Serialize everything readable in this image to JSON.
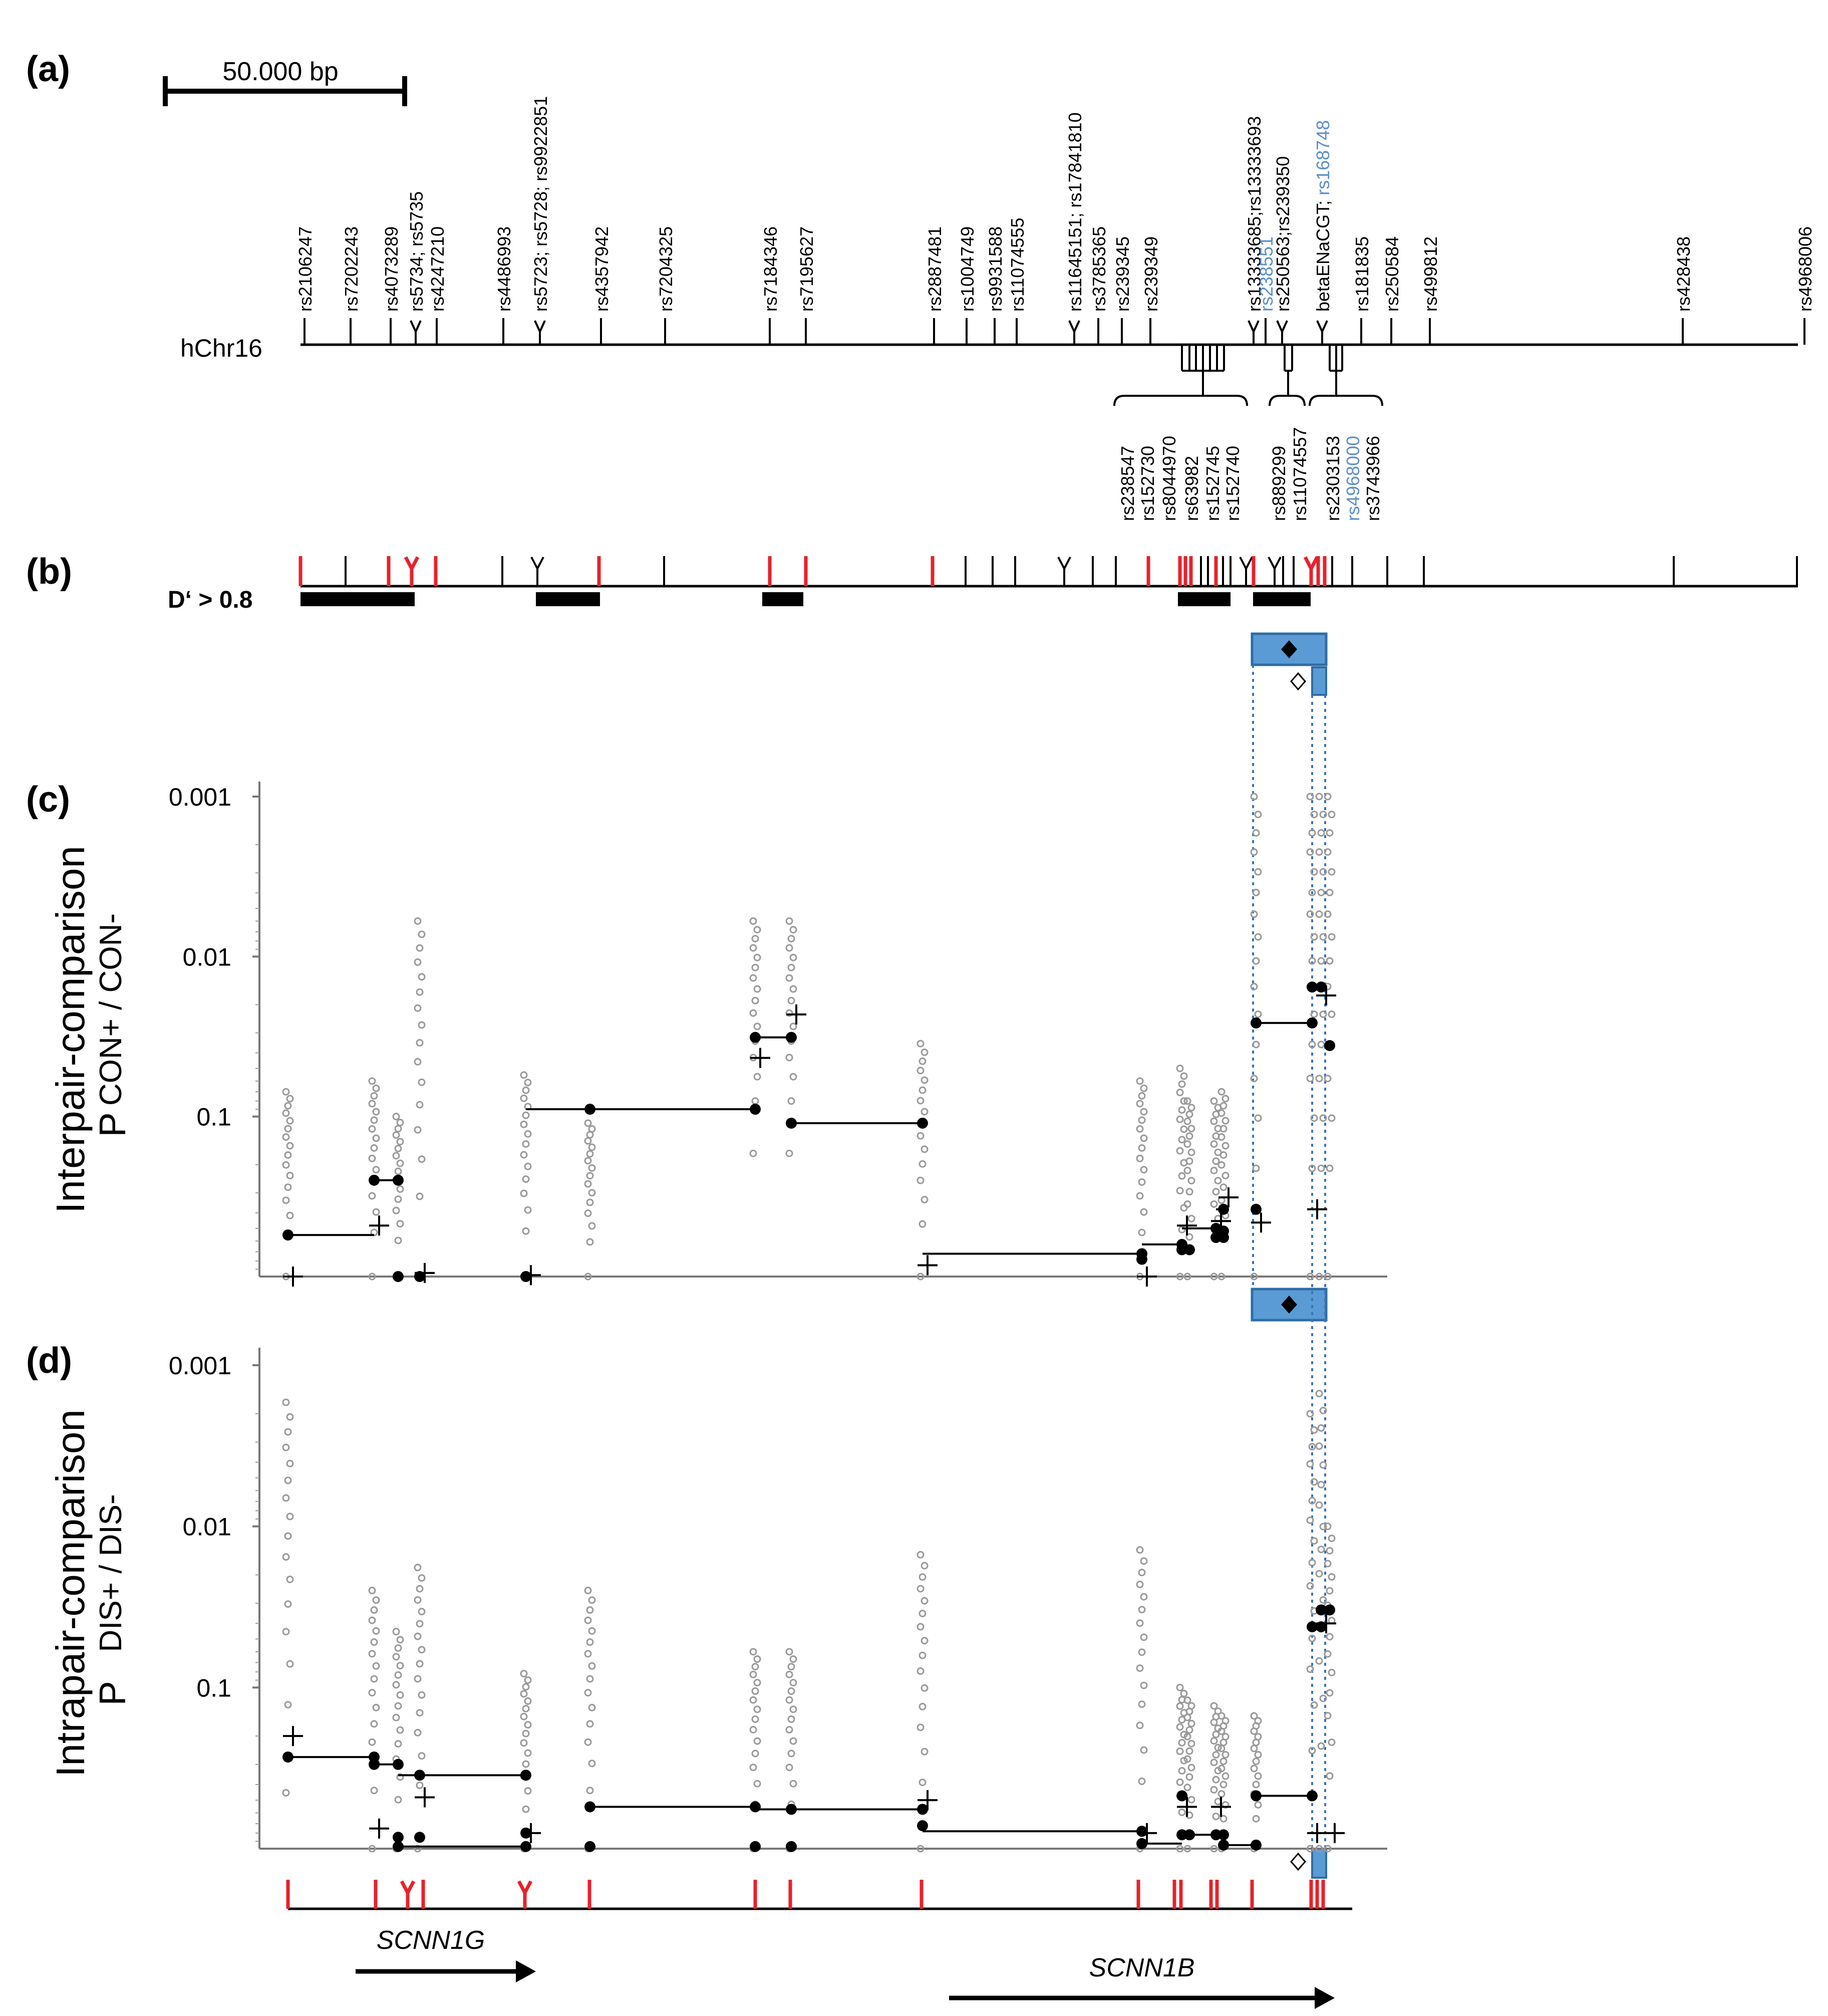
{
  "panels": {
    "a": "(a)",
    "b": "(b)",
    "c": "(c)",
    "d": "(d)"
  },
  "scale_bar": {
    "label": "50.000 bp"
  },
  "chromosome_label": "hChr16",
  "ld_label": "D‘ > 0.8",
  "colors": {
    "marker_red": "#e8212a",
    "highlight_blue": "#5b9bd5",
    "highlight_border": "#2e6da4",
    "guide_dotted": "#3b72b8",
    "individual_points": "#9a9a9a",
    "label_blue": "#5b8ec9"
  },
  "snp_labels_top": [
    {
      "text": "rs2106247",
      "color": "#000000"
    },
    {
      "text": "rs7202243",
      "color": "#000000"
    },
    {
      "text": "rs4073289",
      "color": "#000000"
    },
    {
      "text": "rs5734; rs5735",
      "color": "#000000"
    },
    {
      "text": "rs4247210",
      "color": "#000000"
    },
    {
      "text": "rs4486993",
      "color": "#000000"
    },
    {
      "text": "rs5723; rs5728; rs9922851",
      "color": "#000000"
    },
    {
      "text": "rs4357942",
      "color": "#000000"
    },
    {
      "text": "rs7204325",
      "color": "#000000"
    },
    {
      "text": "rs7184346",
      "color": "#000000"
    },
    {
      "text": "rs7195627",
      "color": "#000000"
    },
    {
      "text": "rs2887481",
      "color": "#000000"
    },
    {
      "text": "rs1004749",
      "color": "#000000"
    },
    {
      "text": "rs9931588",
      "color": "#000000"
    },
    {
      "text": "rs11074555",
      "color": "#000000"
    },
    {
      "text": "rs11645151; rs17841810",
      "color": "#000000"
    },
    {
      "text": "rs3785365",
      "color": "#000000"
    },
    {
      "text": "rs239345",
      "color": "#000000"
    },
    {
      "text": "rs239349",
      "color": "#000000"
    },
    {
      "text": "rs13333685;rs13333693",
      "color": "#000000"
    },
    {
      "text": "rs238551",
      "color": "#5b8ec9"
    },
    {
      "text": "rs250563;rs239350",
      "color": "#000000"
    },
    {
      "text": "betaENaCGT; ",
      "color": "#000000",
      "extra": "rs168748",
      "extra_color": "#5b8ec9"
    },
    {
      "text": "rs181835",
      "color": "#000000"
    },
    {
      "text": "rs250584",
      "color": "#000000"
    },
    {
      "text": "rs499812",
      "color": "#000000"
    },
    {
      "text": "rs428438",
      "color": "#000000"
    },
    {
      "text": "rs4968006",
      "color": "#000000"
    }
  ],
  "snp_labels_bottom": [
    {
      "text": "rs238547",
      "color": "#000000"
    },
    {
      "text": "rs152730",
      "color": "#000000"
    },
    {
      "text": "rs8044970",
      "color": "#000000"
    },
    {
      "text": "rs63982",
      "color": "#000000"
    },
    {
      "text": "rs152745",
      "color": "#000000"
    },
    {
      "text": "rs152740",
      "color": "#000000"
    },
    {
      "text": "rs889299",
      "color": "#000000"
    },
    {
      "text": "rs11074557",
      "color": "#000000"
    },
    {
      "text": "rs2303153",
      "color": "#000000"
    },
    {
      "text": "rs4968000",
      "color": "#5b8ec9"
    },
    {
      "text": "rs3743966",
      "color": "#000000"
    }
  ],
  "genes": [
    {
      "name": "SCNN1G",
      "direction": "right"
    },
    {
      "name": "SCNN1B",
      "direction": "right"
    }
  ],
  "chart_data": [
    {
      "type": "scatter",
      "panel": "c",
      "title": "",
      "ylabel": "Interpair-comparison",
      "ylabel_sub_p": "P",
      "ylabel_sub_text": "CON+ / CON-",
      "yscale": "log-inverted",
      "ylim": [
        1,
        0.001
      ],
      "yticks": [
        {
          "value": 0.001,
          "label": "0.001"
        },
        {
          "value": 0.01,
          "label": "0.01"
        },
        {
          "value": 0.1,
          "label": "0.1"
        }
      ],
      "markers": [
        {
          "x": 0.8,
          "medians": [
            0.55
          ],
          "cross": 1.0,
          "spread": [
            0.07,
            1.0
          ]
        },
        {
          "x": 7.1,
          "medians": [
            0.25
          ],
          "cross": 0.48,
          "spread": [
            0.06,
            1.0
          ]
        },
        {
          "x": 8.6,
          "medians": [
            0.25,
            1.0
          ],
          "cross": null,
          "spread": [
            0.1,
            1.0
          ]
        },
        {
          "x": 10.2,
          "medians": [
            1.0
          ],
          "cross": 0.95,
          "spread": [
            0.006,
            1.0
          ]
        },
        {
          "x": 17.3,
          "medians": [
            1.0
          ],
          "cross": 0.98,
          "spread": [
            0.055,
            1.0
          ]
        },
        {
          "x": 21.5,
          "medians": [
            0.09
          ],
          "cross": null,
          "spread": [
            0.11,
            1.0
          ]
        },
        {
          "x": 31.2,
          "medians": [
            0.09,
            0.032
          ],
          "cross": 0.043,
          "spread": [
            0.006,
            0.17
          ]
        },
        {
          "x": 33.5,
          "medians": [
            0.032,
            0.11
          ],
          "cross": 0.023,
          "spread": [
            0.006,
            0.17
          ]
        },
        {
          "x": 41.5,
          "medians": [
            0.11
          ],
          "cross": 0.85,
          "spread": [
            0.035,
            1.0
          ]
        },
        {
          "x": 56.5,
          "medians": [
            0.72,
            0.78
          ],
          "cross": 1.0,
          "spread": [
            0.06,
            1.0
          ]
        },
        {
          "x": 59.2,
          "medians": [
            0.63,
            0.68
          ],
          "cross": 0.48,
          "spread": [
            0.05,
            1.0
          ]
        },
        {
          "x": 60.2,
          "medians": [
            0.68
          ],
          "cross": null,
          "spread": [
            0.08,
            1.0
          ]
        },
        {
          "x": 61.4,
          "medians": [
            0.5,
            0.57
          ],
          "cross": 0.45,
          "spread": [
            0.08,
            1.0
          ]
        },
        {
          "x": 63.0,
          "medians": [
            0.57,
            0.52,
            0.38
          ],
          "cross": 0.32,
          "spread": [
            0.07,
            1.0
          ]
        },
        {
          "x": 65.8,
          "medians": [
            0.38,
            0.026
          ],
          "cross": 0.46,
          "spread": [
            0.001,
            1.0
          ]
        },
        {
          "x": 69.8,
          "medians": [
            0.026,
            0.0155
          ],
          "cross": 0.38,
          "spread": [
            0.001,
            1.0
          ]
        },
        {
          "x": 70.5,
          "medians": [
            0.0155
          ],
          "cross": 0.0175,
          "spread": [
            0.001,
            1.0
          ]
        },
        {
          "x": 71.3,
          "medians": [
            0.036
          ],
          "cross": null,
          "spread": [
            0.001,
            1.0
          ]
        }
      ],
      "segments": [
        {
          "x0": 0.8,
          "x1": 7.1,
          "y": 0.55
        },
        {
          "x0": 7.1,
          "x1": 8.6,
          "y": 0.25
        },
        {
          "x0": 17.3,
          "x1": 21.5,
          "y": 0.09
        },
        {
          "x0": 21.5,
          "x1": 31.2,
          "y": 0.09
        },
        {
          "x0": 31.2,
          "x1": 33.5,
          "y": 0.032
        },
        {
          "x0": 33.5,
          "x1": 41.5,
          "y": 0.11
        },
        {
          "x0": 41.5,
          "x1": 56.5,
          "y": 0.72
        },
        {
          "x0": 56.5,
          "x1": 59.2,
          "y": 0.63
        },
        {
          "x0": 59.2,
          "x1": 61.4,
          "y": 0.5
        },
        {
          "x0": 61.4,
          "x1": 63.0,
          "y": 0.38
        },
        {
          "x0": 65.8,
          "x1": 69.8,
          "y": 0.026
        }
      ]
    },
    {
      "type": "scatter",
      "panel": "d",
      "title": "",
      "ylabel": "Intrapair-comparison",
      "ylabel_sub_p": "P",
      "ylabel_sub_text": "DIS+ / DIS-",
      "yscale": "log-inverted",
      "ylim": [
        1,
        0.001
      ],
      "yticks": [
        {
          "value": 0.001,
          "label": "0.001"
        },
        {
          "value": 0.01,
          "label": "0.01"
        },
        {
          "value": 0.1,
          "label": "0.1"
        }
      ],
      "markers": [
        {
          "x": 0.8,
          "medians": [
            0.27
          ],
          "cross": 0.2,
          "spread": [
            0.0017,
            0.45
          ]
        },
        {
          "x": 7.1,
          "medians": [
            0.27,
            0.3
          ],
          "cross": 0.75,
          "spread": [
            0.025,
            1.0
          ]
        },
        {
          "x": 8.6,
          "medians": [
            0.3,
            0.85,
            0.97
          ],
          "cross": null,
          "spread": [
            0.045,
            1.0
          ]
        },
        {
          "x": 10.2,
          "medians": [
            0.85,
            0.35
          ],
          "cross": 0.48,
          "spread": [
            0.018,
            1.0
          ]
        },
        {
          "x": 17.3,
          "medians": [
            0.35,
            0.8,
            0.97
          ],
          "cross": 0.8,
          "spread": [
            0.082,
            1.0
          ]
        },
        {
          "x": 21.5,
          "medians": [
            0.97,
            0.55
          ],
          "cross": null,
          "spread": [
            0.025,
            1.0
          ]
        },
        {
          "x": 31.2,
          "medians": [
            0.55,
            0.97
          ],
          "cross": null,
          "spread": [
            0.06,
            1.0
          ]
        },
        {
          "x": 33.5,
          "medians": [
            0.57,
            0.97
          ],
          "cross": null,
          "spread": [
            0.06,
            1.0
          ]
        },
        {
          "x": 41.5,
          "medians": [
            0.57,
            0.72
          ],
          "cross": 0.5,
          "spread": [
            0.015,
            1.0
          ]
        },
        {
          "x": 56.5,
          "medians": [
            0.78,
            0.93
          ],
          "cross": 0.8,
          "spread": [
            0.014,
            1.0
          ]
        },
        {
          "x": 59.2,
          "medians": [
            0.47,
            0.82
          ],
          "cross": 0.55,
          "spread": [
            0.1,
            1.0
          ]
        },
        {
          "x": 60.2,
          "medians": [
            0.82
          ],
          "cross": null,
          "spread": [
            0.12,
            1.0
          ]
        },
        {
          "x": 61.4,
          "medians": [
            0.82
          ],
          "cross": 0.55,
          "spread": [
            0.13,
            1.0
          ]
        },
        {
          "x": 63.0,
          "medians": [
            0.82,
            0.95
          ],
          "cross": null,
          "spread": [
            0.15,
            1.0
          ]
        },
        {
          "x": 65.8,
          "medians": [
            0.47,
            0.95
          ],
          "cross": null,
          "spread": [
            0.15,
            1.0
          ]
        },
        {
          "x": 69.8,
          "medians": [
            0.47,
            0.042
          ],
          "cross": 0.8,
          "spread": [
            0.002,
            1.0
          ]
        },
        {
          "x": 70.5,
          "medians": [
            0.042,
            0.033
          ],
          "cross": 0.04,
          "spread": [
            0.0015,
            1.0
          ]
        },
        {
          "x": 71.3,
          "medians": [
            0.033
          ],
          "cross": 0.8,
          "spread": [
            0.01,
            1.0
          ]
        }
      ],
      "segments": [
        {
          "x0": 0.8,
          "x1": 7.1,
          "y": 0.27
        },
        {
          "x0": 7.1,
          "x1": 8.6,
          "y": 0.3
        },
        {
          "x0": 8.6,
          "x1": 17.3,
          "y": 0.35
        },
        {
          "x0": 8.6,
          "x1": 17.3,
          "y": 0.97
        },
        {
          "x0": 21.5,
          "x1": 31.2,
          "y": 0.55
        },
        {
          "x0": 31.2,
          "x1": 41.5,
          "y": 0.57
        },
        {
          "x0": 41.5,
          "x1": 56.5,
          "y": 0.78
        },
        {
          "x0": 56.5,
          "x1": 59.2,
          "y": 0.93
        },
        {
          "x0": 59.2,
          "x1": 61.4,
          "y": 0.82
        },
        {
          "x0": 61.4,
          "x1": 63.0,
          "y": 0.82
        },
        {
          "x0": 63.0,
          "x1": 65.8,
          "y": 0.95
        },
        {
          "x0": 65.8,
          "x1": 69.8,
          "y": 0.47
        }
      ]
    }
  ]
}
